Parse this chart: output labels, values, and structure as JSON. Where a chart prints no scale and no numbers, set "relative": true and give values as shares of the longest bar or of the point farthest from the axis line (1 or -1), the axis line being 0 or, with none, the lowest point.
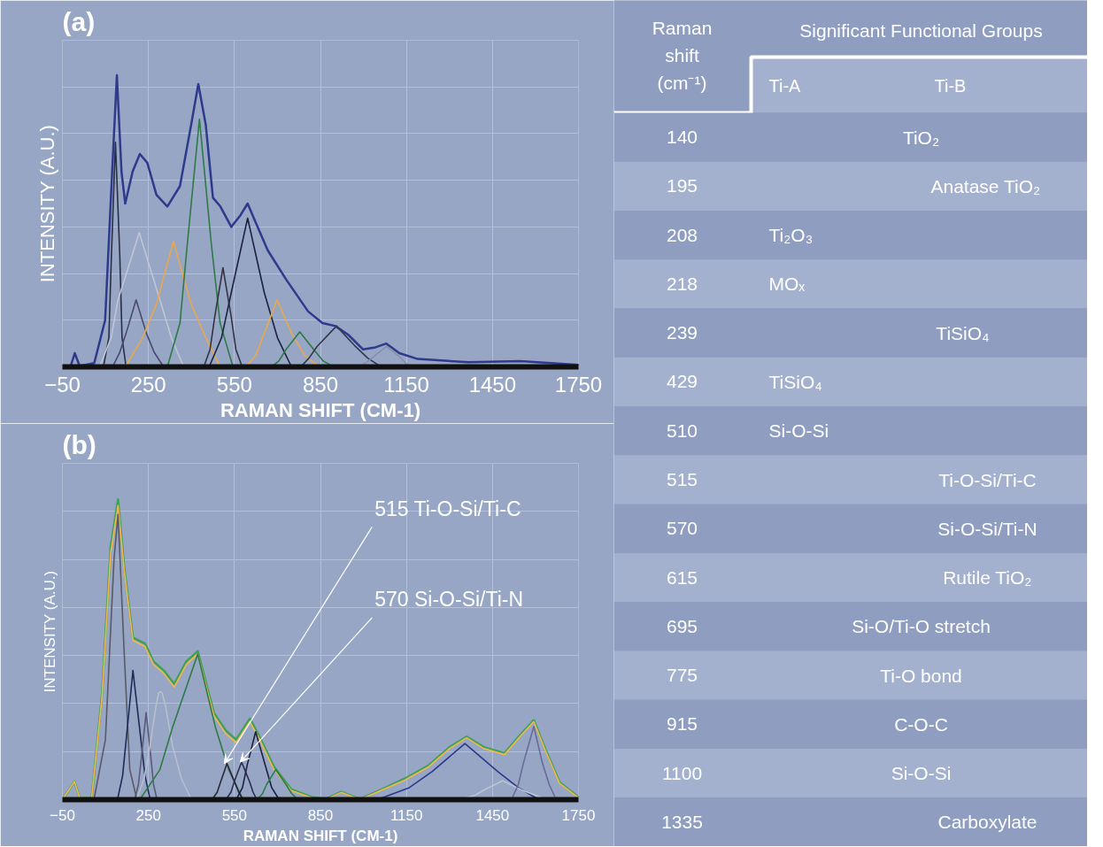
{
  "chart_data": [
    {
      "type": "line",
      "title": "(a)",
      "xlabel": "RAMAN SHIFT (CM-1)",
      "ylabel": "INTENSITY (A.U.)",
      "relative": true,
      "grid": true,
      "xlim": [
        -50,
        1750
      ],
      "xticks": [
        -50,
        250,
        550,
        850,
        1150,
        1450,
        1750
      ],
      "series": [
        {
          "color": "#2e3a8c",
          "x": [
            -50,
            -22,
            -7,
            10,
            61,
            99,
            125,
            140,
            156,
            169,
            195,
            220,
            246,
            278,
            316,
            360,
            399,
            424,
            450,
            475,
            501,
            539,
            571,
            596,
            622,
            666,
            730,
            807,
            857,
            902,
            947,
            998,
            1042,
            1080,
            1125,
            1189,
            1367,
            1546,
            1750
          ],
          "values": [
            0,
            0,
            0.047,
            0.003,
            0.013,
            0.16,
            0.7,
            1.0,
            0.67,
            0.56,
            0.67,
            0.73,
            0.7,
            0.59,
            0.55,
            0.62,
            0.83,
            0.97,
            0.83,
            0.58,
            0.55,
            0.48,
            0.52,
            0.56,
            0.5,
            0.4,
            0.3,
            0.19,
            0.15,
            0.14,
            0.11,
            0.06,
            0.067,
            0.08,
            0.047,
            0.027,
            0.016,
            0.02,
            0.007
          ]
        },
        {
          "color": "#2a2f45",
          "x": [
            93,
            112,
            121,
            135,
            150,
            158,
            172
          ],
          "values": [
            0,
            0.1,
            0.385,
            0.77,
            0.385,
            0.1,
            0
          ]
        },
        {
          "color": "#c0c6d4",
          "x": [
            80,
            120,
            144,
            218,
            290,
            330,
            373
          ],
          "values": [
            0,
            0.1,
            0.23,
            0.46,
            0.23,
            0.1,
            0
          ]
        },
        {
          "color": "#4a4870",
          "x": [
            125,
            150,
            172,
            207,
            243,
            270,
            303
          ],
          "values": [
            0,
            0.05,
            0.115,
            0.23,
            0.115,
            0.05,
            0
          ]
        },
        {
          "color": "#e8a94a",
          "x": [
            169,
            230,
            278,
            337,
            399,
            450,
            500
          ],
          "values": [
            0,
            0.1,
            0.215,
            0.43,
            0.215,
            0.1,
            0
          ]
        },
        {
          "color": "#2e7a47",
          "x": [
            316,
            360,
            386,
            428,
            469,
            500,
            545
          ],
          "values": [
            0,
            0.15,
            0.425,
            0.85,
            0.425,
            0.15,
            0
          ]
        },
        {
          "color": "#333344",
          "x": [
            443,
            465,
            481,
            510,
            539,
            555,
            577
          ],
          "values": [
            0,
            0.06,
            0.17,
            0.34,
            0.17,
            0.06,
            0
          ]
        },
        {
          "color": "#1c2140",
          "x": [
            462,
            505,
            539,
            596,
            654,
            700,
            749
          ],
          "values": [
            0,
            0.1,
            0.255,
            0.51,
            0.255,
            0.1,
            0
          ]
        },
        {
          "color": "#e8a94a",
          "x": [
            590,
            625,
            654,
            699,
            749,
            795,
            845
          ],
          "values": [
            0,
            0.04,
            0.115,
            0.23,
            0.115,
            0.04,
            0
          ]
        },
        {
          "color": "#2e7a47",
          "x": [
            679,
            705,
            730,
            778,
            826,
            860,
            896
          ],
          "values": [
            0,
            0.02,
            0.06,
            0.12,
            0.06,
            0.02,
            0
          ]
        },
        {
          "color": "#333850",
          "x": [
            781,
            810,
            838,
            906,
            972,
            1015,
            1061
          ],
          "values": [
            0,
            0.03,
            0.07,
            0.14,
            0.07,
            0.03,
            0
          ]
        },
        {
          "color": "#8890a8",
          "x": [
            985,
            1010,
            1036,
            1080,
            1125,
            1145,
            1163
          ],
          "values": [
            0,
            0.015,
            0.035,
            0.07,
            0.035,
            0.015,
            0
          ]
        }
      ]
    },
    {
      "type": "line",
      "title": "(b)",
      "xlabel": "RAMAN SHIFT (CM-1)",
      "ylabel": "INTENSITY (A.U.)",
      "relative": true,
      "grid": true,
      "xlim": [
        -50,
        1750
      ],
      "xticks": [
        -50,
        250,
        550,
        850,
        1150,
        1450,
        1750
      ],
      "annotations": [
        {
          "text": "515 Ti-O-Si/Ti-C",
          "x": 515,
          "y": 0.12
        },
        {
          "text": "570 Si-O-Si/Ti-N",
          "x": 570,
          "y": 0.125
        }
      ],
      "series": [
        {
          "color": "#3fa05a",
          "x": [
            -50,
            -8,
            10,
            52,
            88,
            118,
            144,
            166,
            196,
            238,
            268,
            304,
            340,
            382,
            422,
            448,
            478,
            520,
            556,
            604,
            640,
            688,
            748,
            820,
            868,
            922,
            988,
            1060,
            1144,
            1228,
            1300,
            1360,
            1420,
            1492,
            1546,
            1594,
            1636,
            1684,
            1750
          ],
          "values": [
            0,
            0.06,
            0.006,
            0.006,
            0.35,
            0.84,
            1.0,
            0.77,
            0.54,
            0.52,
            0.46,
            0.43,
            0.385,
            0.46,
            0.495,
            0.4,
            0.29,
            0.23,
            0.2,
            0.27,
            0.205,
            0.11,
            0.035,
            0.008,
            0.002,
            0.026,
            0.002,
            0.033,
            0.07,
            0.115,
            0.175,
            0.21,
            0.175,
            0.155,
            0.215,
            0.265,
            0.165,
            0.058,
            0.008
          ]
        },
        {
          "color": "#f0b84a",
          "x": [
            -50,
            -8,
            10,
            52,
            88,
            118,
            144,
            166,
            196,
            238,
            268,
            304,
            340,
            382,
            422,
            448,
            478,
            520,
            556,
            604,
            640,
            688,
            748,
            820,
            868,
            922,
            988,
            1060,
            1144,
            1228,
            1300,
            1360,
            1420,
            1492,
            1546,
            1594,
            1636,
            1684,
            1750
          ],
          "values": [
            0,
            0.06,
            0.006,
            0.006,
            0.34,
            0.82,
            0.98,
            0.76,
            0.53,
            0.51,
            0.45,
            0.42,
            0.375,
            0.45,
            0.485,
            0.39,
            0.28,
            0.22,
            0.19,
            0.26,
            0.196,
            0.1,
            0.03,
            0.006,
            0,
            0.024,
            0,
            0.03,
            0.065,
            0.11,
            0.17,
            0.206,
            0.17,
            0.15,
            0.21,
            0.26,
            0.16,
            0.054,
            0.006
          ]
        },
        {
          "color": "#5a5a66",
          "x": [
            60,
            100,
            130,
            144,
            165,
            185,
            210
          ],
          "values": [
            0,
            0.2,
            0.8,
            0.95,
            0.5,
            0.1,
            0
          ]
        },
        {
          "color": "#1f2a5a",
          "x": [
            142,
            160,
            174,
            196,
            222,
            238,
            256
          ],
          "values": [
            0,
            0.08,
            0.215,
            0.43,
            0.215,
            0.08,
            0
          ]
        },
        {
          "color": "#5a5a7a",
          "x": [
            202,
            215,
            226,
            242,
            258,
            268,
            280
          ],
          "values": [
            0,
            0.05,
            0.145,
            0.29,
            0.145,
            0.05,
            0
          ]
        },
        {
          "color": "#b8bece",
          "x": [
            208,
            235,
            256,
            276,
            286,
            292,
            298,
            310,
            334,
            365,
            400
          ],
          "values": [
            0,
            0.07,
            0.18,
            0.31,
            0.355,
            0.36,
            0.355,
            0.31,
            0.18,
            0.07,
            0
          ]
        },
        {
          "color": "#2e7a47",
          "x": [
            220,
            290,
            334,
            422,
            484,
            530,
            580
          ],
          "values": [
            0,
            0.1,
            0.24,
            0.485,
            0.24,
            0.1,
            0
          ]
        },
        {
          "color": "#2a2a35",
          "x": [
            472,
            490,
            502,
            524,
            550,
            565,
            580
          ],
          "values": [
            0,
            0.025,
            0.06,
            0.12,
            0.06,
            0.025,
            0
          ]
        },
        {
          "color": "#2a3050",
          "x": [
            520,
            538,
            550,
            575,
            602,
            615,
            628
          ],
          "values": [
            0,
            0.025,
            0.062,
            0.125,
            0.062,
            0.025,
            0
          ]
        },
        {
          "color": "#1c2140",
          "x": [
            556,
            578,
            594,
            624,
            658,
            680,
            706
          ],
          "values": [
            0,
            0.04,
            0.113,
            0.226,
            0.113,
            0.04,
            0
          ]
        },
        {
          "color": "#2e7a47",
          "x": [
            628,
            648,
            662,
            694,
            730,
            750,
            772
          ],
          "values": [
            0,
            0.02,
            0.05,
            0.1,
            0.05,
            0.02,
            0
          ]
        },
        {
          "color": "#2a3a8a",
          "x": [
            1048,
            1160,
            1240,
            1354,
            1468,
            1540,
            1612
          ],
          "values": [
            0,
            0.04,
            0.094,
            0.187,
            0.094,
            0.04,
            0
          ]
        },
        {
          "color": "#c0c6d4",
          "x": [
            1336,
            1390,
            1420,
            1486,
            1552,
            1600,
            1636
          ],
          "values": [
            0,
            0.015,
            0.032,
            0.063,
            0.032,
            0.015,
            0
          ]
        },
        {
          "color": "#6a6a9a",
          "x": [
            1516,
            1540,
            1558,
            1594,
            1624,
            1648,
            1672
          ],
          "values": [
            0,
            0.05,
            0.122,
            0.244,
            0.122,
            0.05,
            0
          ]
        }
      ]
    },
    {
      "type": "other",
      "title": "Significant Functional Groups",
      "xlabel": "Raman shift (cm⁻¹)",
      "categories": [
        "140",
        "195",
        "208",
        "218",
        "239",
        "429",
        "510",
        "515",
        "570",
        "615",
        "695",
        "775",
        "915",
        "1100",
        "1335"
      ],
      "annotations": [
        "Ti-A",
        "Ti-B",
        "TiO₂",
        "Anatase TiO₂",
        "Ti₂O₃",
        "MOₓ",
        "TiSiO₄",
        "TiSiO₄",
        "Si-O-Si",
        "Ti-O-Si/Ti-C",
        "Si-O-Si/Ti-N",
        "Rutile TiO₂",
        "Si-O/Ti-O stretch",
        "Ti-O bond",
        "C-O-C",
        "Si-O-Si",
        "Carboxylate"
      ]
    }
  ]
}
